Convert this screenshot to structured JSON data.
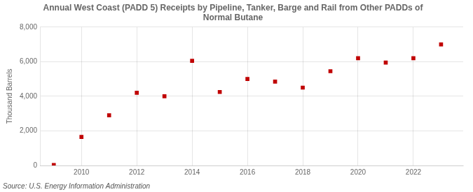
{
  "chart_data": {
    "type": "scatter",
    "title": "Annual West Coast (PADD 5) Receipts by Pipeline, Tanker, Barge and Rail from Other PADDs of\nNormal Butane",
    "ylabel": "Thousand Barrels",
    "source": "Source: U.S. Energy Information Administration",
    "x": [
      2009,
      2010,
      2011,
      2012,
      2013,
      2014,
      2015,
      2016,
      2017,
      2018,
      2019,
      2020,
      2021,
      2022,
      2023
    ],
    "values": [
      30,
      1650,
      2900,
      4200,
      4000,
      6050,
      4250,
      5000,
      4850,
      4500,
      5450,
      6200,
      5950,
      6200,
      7000
    ],
    "color": "#c00000",
    "marker": "square",
    "xlim": [
      2008.5,
      2023.8
    ],
    "xticks": [
      2010,
      2012,
      2014,
      2016,
      2018,
      2020,
      2022
    ],
    "ylim": [
      0,
      8000
    ],
    "yticks": [
      0,
      {
        "value": 2000,
        "label": "2,000"
      },
      {
        "value": 4000,
        "label": "4,000"
      },
      {
        "value": 6000,
        "label": "6,000"
      },
      {
        "value": 8000,
        "label": "8,000"
      }
    ],
    "grid": true
  }
}
